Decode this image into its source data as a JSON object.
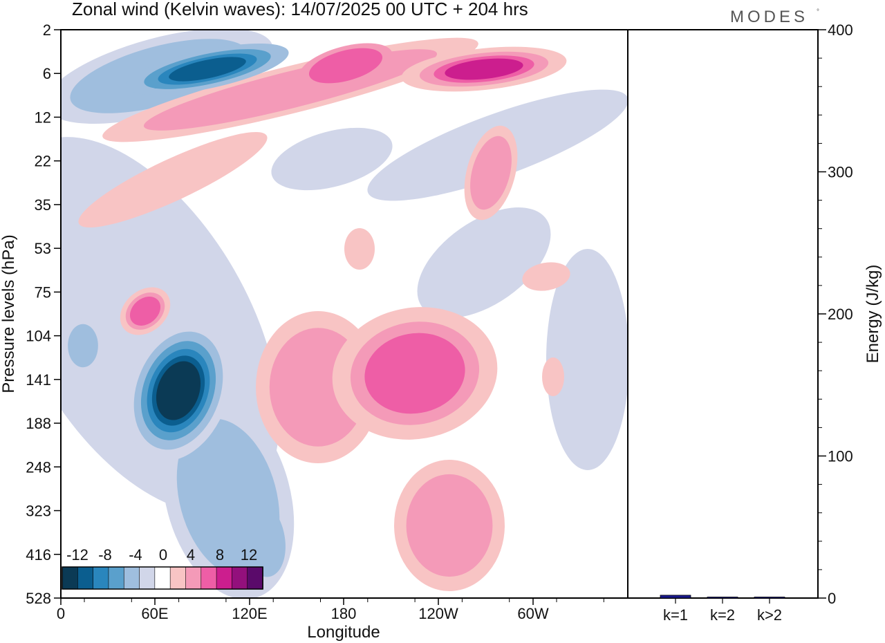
{
  "header": {
    "title": "Zonal wind (Kelvin waves):  14/07/2025  00 UTC  + 204 hrs",
    "brand": "MODES",
    "brand_mark": "°"
  },
  "chart_data": [
    {
      "type": "heatmap",
      "title": "Zonal wind (Kelvin waves):  14/07/2025  00 UTC  + 204 hrs",
      "xlabel": "Longitude",
      "ylabel": "Pressure levels (hPa)",
      "x_ticks": [
        "0",
        "60E",
        "120E",
        "180",
        "120W",
        "60W"
      ],
      "y_ticks": [
        "2",
        "6",
        "12",
        "22",
        "35",
        "53",
        "75",
        "104",
        "141",
        "188",
        "248",
        "323",
        "416",
        "528"
      ],
      "y_reversed": true,
      "colorbar": {
        "labels": [
          "-12",
          "-8",
          "-4",
          "0",
          "4",
          "8",
          "12"
        ],
        "levels": [
          -14,
          -12,
          -10,
          -8,
          -6,
          -4,
          -2,
          2,
          4,
          6,
          8,
          10,
          12,
          14
        ],
        "colors": [
          "#0b3a55",
          "#0b5e8f",
          "#2a86bd",
          "#5aa0cc",
          "#9fbede",
          "#d1d6e9",
          "#ffffff",
          "#f8c4c4",
          "#f49ab8",
          "#ee5ea6",
          "#cc1e8e",
          "#93107c",
          "#5a0a6a"
        ]
      },
      "features": [
        {
          "sign": "negative",
          "peak": -14,
          "lon_center": 72,
          "level_center": 141
        },
        {
          "sign": "positive",
          "peak": 8,
          "lon_center": 63,
          "level_center": 90
        },
        {
          "sign": "positive",
          "peak": 6,
          "lon_center": 150,
          "level_center": 150
        },
        {
          "sign": "positive",
          "peak": 8,
          "lon_center": 235,
          "level_center": 150
        },
        {
          "sign": "positive",
          "peak": 6,
          "lon_center": 255,
          "level_center": 330
        },
        {
          "sign": "negative",
          "peak": -10,
          "lon_center": 100,
          "level_center": 5
        },
        {
          "sign": "positive",
          "peak": 10,
          "lon_center": 258,
          "level_center": 5
        },
        {
          "sign": "positive",
          "peak": 8,
          "lon_center": 175,
          "level_center": 6
        },
        {
          "sign": "positive",
          "peak": 6,
          "lon_center": 120,
          "level_center": 10
        }
      ]
    },
    {
      "type": "bar",
      "categories": [
        "k=1",
        "k=2",
        "k>2"
      ],
      "values": [
        2,
        0.5,
        0.7
      ],
      "ylabel": "Energy (J/kg)",
      "y_ticks": [
        "0",
        "100",
        "200",
        "300",
        "400"
      ],
      "ylim": [
        0,
        400
      ],
      "bar_color": "#1a1a8c"
    }
  ]
}
